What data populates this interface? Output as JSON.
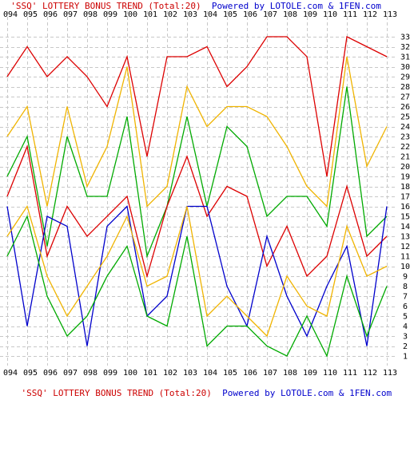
{
  "header": {
    "title_part": "'SSQ' LOTTERY BONUS TREND (Total:20)",
    "powered_part": "Powered by LOTOLE.com & 1FEN.com"
  },
  "footer": {
    "title_part": "'SSQ' LOTTERY BONUS TREND (Total:20)",
    "powered_part": "Powered by LOTOLE.com & 1FEN.com"
  },
  "chart_data": {
    "type": "line",
    "title": "'SSQ' LOTTERY BONUS TREND (Total:20)",
    "x": [
      "094",
      "095",
      "096",
      "097",
      "098",
      "099",
      "100",
      "101",
      "102",
      "103",
      "104",
      "105",
      "106",
      "107",
      "108",
      "109",
      "110",
      "111",
      "112",
      "113"
    ],
    "ylim": [
      1,
      33
    ],
    "yticks": [
      1,
      2,
      3,
      4,
      5,
      6,
      7,
      8,
      9,
      10,
      11,
      12,
      13,
      14,
      15,
      16,
      17,
      18,
      19,
      20,
      21,
      22,
      23,
      24,
      25,
      26,
      27,
      28,
      29,
      30,
      31,
      32,
      33
    ],
    "grid": true,
    "legend": "none",
    "series": [
      {
        "color": "#dd0000",
        "values": [
          29,
          32,
          29,
          31,
          29,
          26,
          31,
          21,
          31,
          31,
          32,
          28,
          30,
          33,
          33,
          31,
          19,
          33,
          32,
          31
        ]
      },
      {
        "color": "#f0b400",
        "values": [
          23,
          26,
          16,
          26,
          18,
          22,
          30,
          16,
          18,
          28,
          24,
          26,
          26,
          25,
          22,
          18,
          16,
          31,
          20,
          24
        ]
      },
      {
        "color": "#00aa00",
        "values": [
          19,
          23,
          12,
          23,
          17,
          17,
          25,
          11,
          16,
          25,
          16,
          24,
          22,
          15,
          17,
          17,
          14,
          28,
          13,
          15
        ]
      },
      {
        "color": "#dd0000",
        "values": [
          17,
          22,
          11,
          16,
          13,
          15,
          17,
          9,
          16,
          21,
          15,
          18,
          17,
          10,
          14,
          9,
          11,
          18,
          11,
          13
        ]
      },
      {
        "color": "#0000cc",
        "values": [
          16,
          4,
          15,
          14,
          2,
          14,
          16,
          5,
          7,
          16,
          16,
          8,
          4,
          13,
          7,
          3,
          8,
          12,
          2,
          16
        ]
      },
      {
        "color": "#f0b400",
        "values": [
          13,
          16,
          9,
          5,
          8,
          11,
          15,
          8,
          9,
          16,
          5,
          7,
          5,
          3,
          9,
          6,
          5,
          14,
          9,
          10
        ]
      },
      {
        "color": "#00aa00",
        "values": [
          11,
          15,
          7,
          3,
          5,
          9,
          12,
          5,
          4,
          13,
          2,
          4,
          4,
          2,
          1,
          5,
          1,
          9,
          3,
          8
        ]
      }
    ]
  }
}
